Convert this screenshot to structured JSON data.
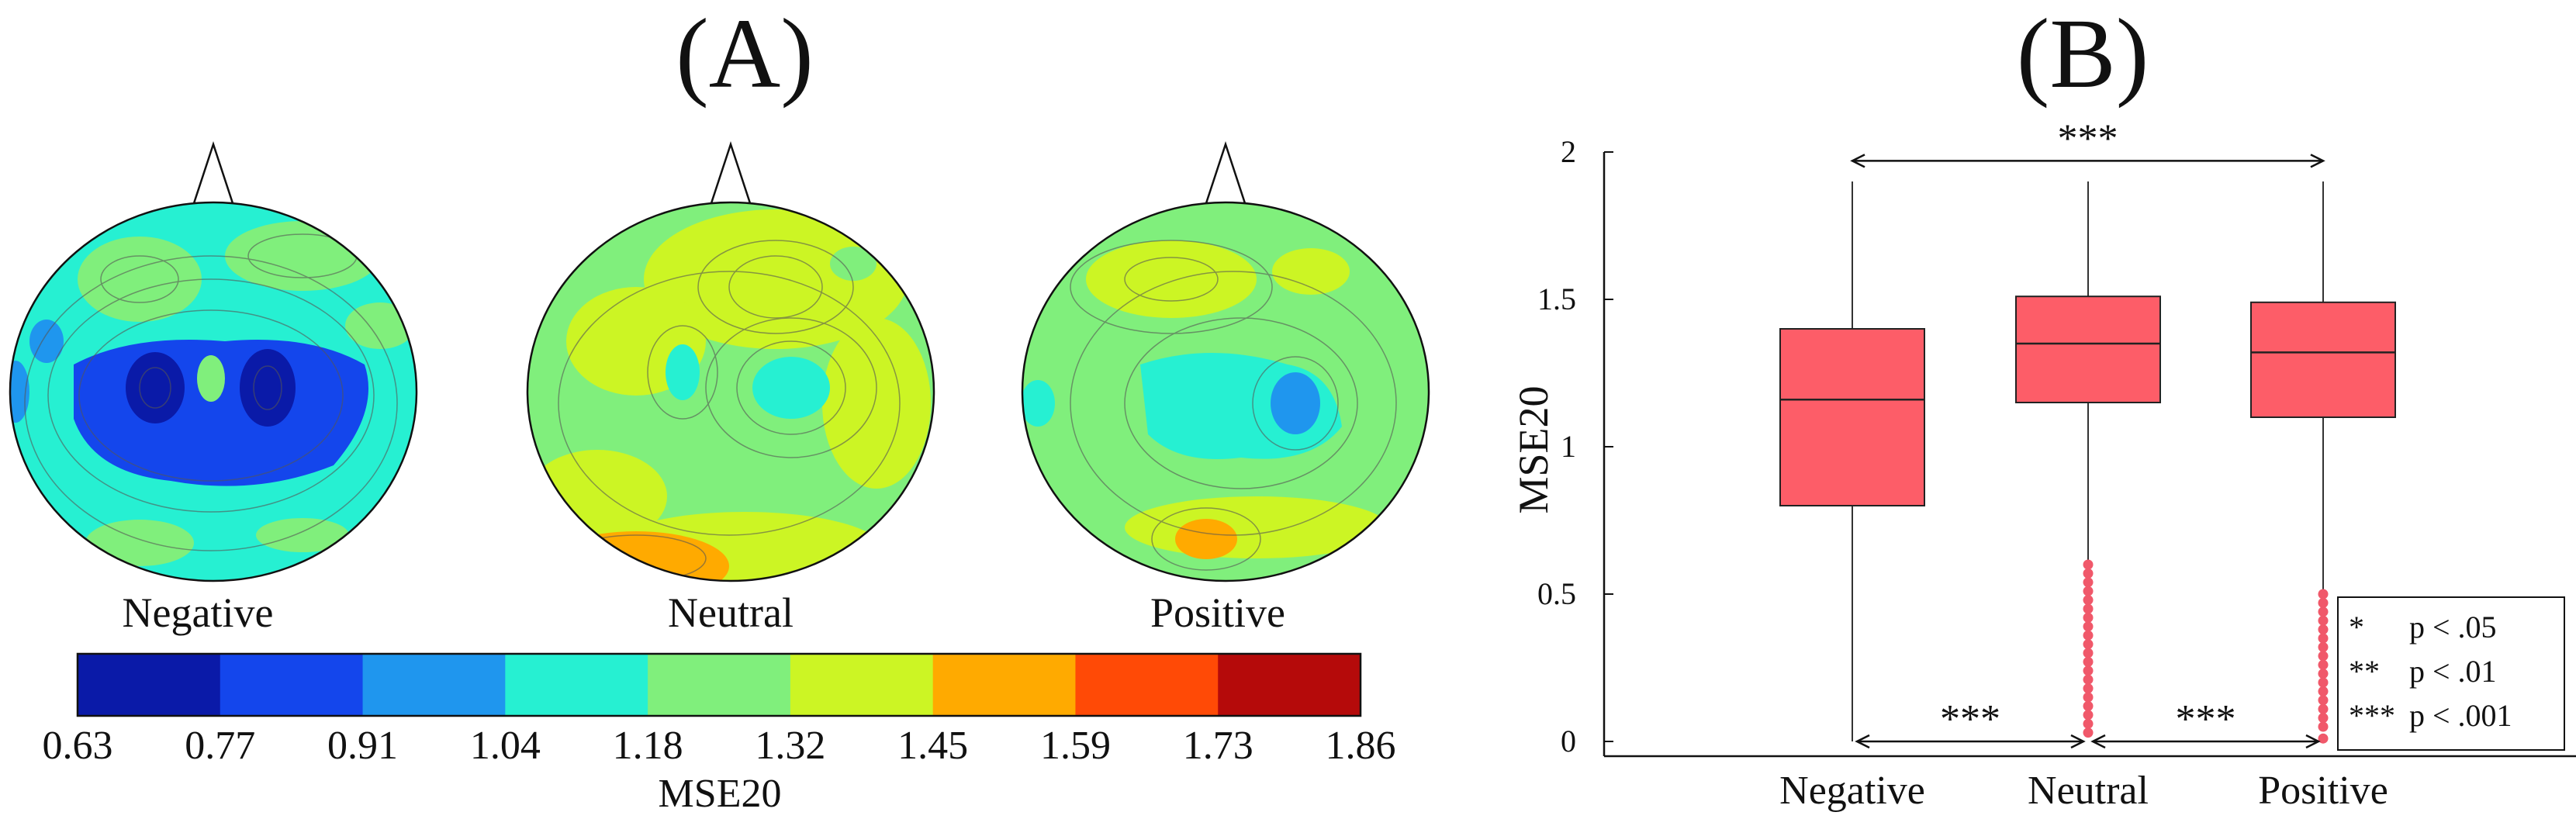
{
  "panel_a": {
    "label": "(A)",
    "maps": [
      {
        "label": "Negative"
      },
      {
        "label": "Neutral"
      },
      {
        "label": "Positive"
      }
    ],
    "colorbar": {
      "ticks": [
        "0.63",
        "0.77",
        "0.91",
        "1.04",
        "1.18",
        "1.32",
        "1.45",
        "1.59",
        "1.73",
        "1.86"
      ],
      "colors": [
        "#0a1aa8",
        "#1446ec",
        "#1f96ee",
        "#26f0d2",
        "#80ef7c",
        "#ccf524",
        "#ffaa00",
        "#ff4a06",
        "#b50a0a"
      ],
      "label": "MSE20"
    }
  },
  "chart_data": {
    "type": "box",
    "title": "(B)",
    "ylabel": "MSE20",
    "xlabel": "",
    "ylim": [
      -0.05,
      2.0
    ],
    "yticks": [
      0,
      0.5,
      1,
      1.5,
      2
    ],
    "ytick_labels": [
      "0",
      "0.5",
      "1",
      "1.5",
      "2"
    ],
    "categories": [
      "Negative",
      "Neutral",
      "Positive"
    ],
    "box_color": "#fd5d68",
    "outlier_color": "#f0586a",
    "boxes": [
      {
        "name": "Negative",
        "whisker_low": 0.0,
        "q1": 0.8,
        "median": 1.16,
        "q3": 1.4,
        "whisker_high": 1.9,
        "outliers": []
      },
      {
        "name": "Neutral",
        "whisker_low": 0.6,
        "q1": 1.15,
        "median": 1.35,
        "q3": 1.51,
        "whisker_high": 1.9,
        "outliers": [
          0.03,
          0.06,
          0.09,
          0.12,
          0.15,
          0.18,
          0.21,
          0.24,
          0.27,
          0.3,
          0.33,
          0.36,
          0.39,
          0.42,
          0.45,
          0.48,
          0.51,
          0.54,
          0.57,
          0.6
        ]
      },
      {
        "name": "Positive",
        "whisker_low": 0.51,
        "q1": 1.1,
        "median": 1.32,
        "q3": 1.49,
        "whisker_high": 1.9,
        "outliers": [
          0.01,
          0.05,
          0.08,
          0.11,
          0.14,
          0.17,
          0.2,
          0.23,
          0.26,
          0.29,
          0.32,
          0.35,
          0.38,
          0.41,
          0.44,
          0.47,
          0.5
        ]
      }
    ],
    "significance": [
      {
        "from": "Negative",
        "to": "Positive",
        "label": "***",
        "y": 1.97
      },
      {
        "from": "Negative",
        "to": "Neutral",
        "label": "***",
        "y": 0.0
      },
      {
        "from": "Neutral",
        "to": "Positive",
        "label": "***",
        "y": 0.0
      }
    ],
    "legend": [
      {
        "stars": "*",
        "text": "p < .05"
      },
      {
        "stars": "**",
        "text": "p < .01"
      },
      {
        "stars": "***",
        "text": "p < .001"
      }
    ]
  }
}
